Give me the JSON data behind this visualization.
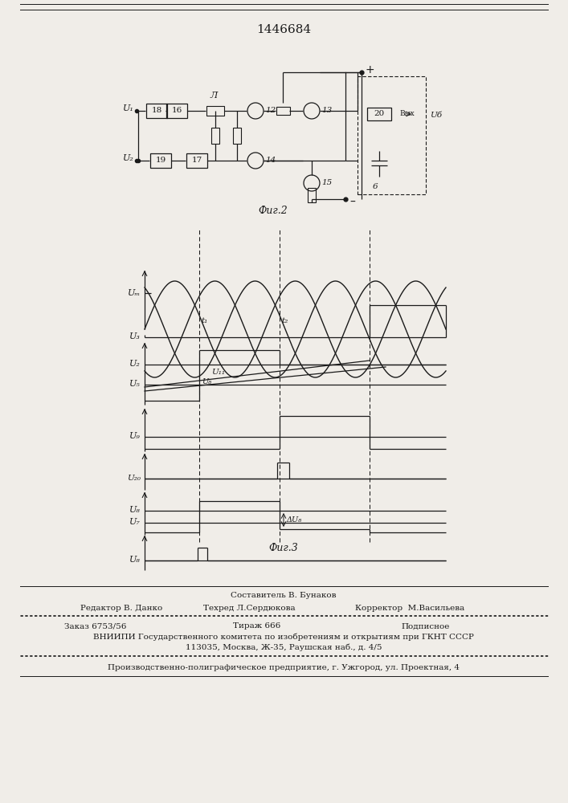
{
  "title": "1446684",
  "fig2_label": "Фиг.2",
  "fig3_label": "Фиг.3",
  "bg_color": "#f0ede8",
  "line_color": "#1a1a1a"
}
